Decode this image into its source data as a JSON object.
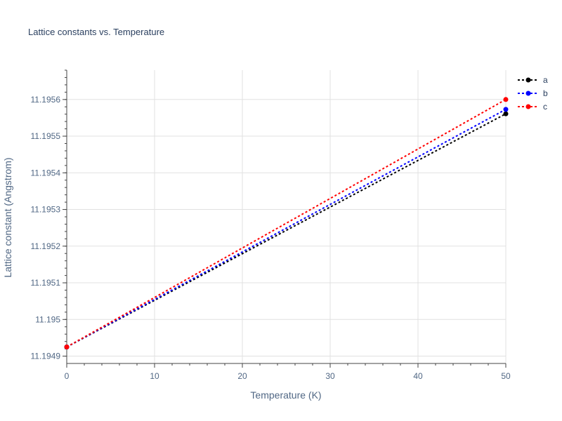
{
  "chart_data": {
    "type": "line",
    "title": "Lattice constants vs. Temperature",
    "xlabel": "Temperature (K)",
    "ylabel": "Lattice constant (Angstrom)",
    "xlim": [
      0,
      50
    ],
    "ylim": [
      11.19488,
      11.19568
    ],
    "x_ticks": [
      0,
      10,
      20,
      30,
      40,
      50
    ],
    "x_tick_labels": [
      "0",
      "10",
      "20",
      "30",
      "40",
      "50"
    ],
    "y_ticks": [
      11.1949,
      11.195,
      11.1951,
      11.1952,
      11.1953,
      11.1954,
      11.1955,
      11.1956
    ],
    "y_tick_labels": [
      "11.1949",
      "11.195",
      "11.1951",
      "11.1952",
      "11.1953",
      "11.1954",
      "11.1955",
      "11.1956"
    ],
    "grid": true,
    "legend_position": "top-right",
    "series": [
      {
        "name": "a",
        "color": "#000000",
        "x": [
          0,
          50
        ],
        "y": [
          11.194925,
          11.195561
        ]
      },
      {
        "name": "b",
        "color": "#0000ff",
        "x": [
          0,
          50
        ],
        "y": [
          11.194925,
          11.195573
        ]
      },
      {
        "name": "c",
        "color": "#ff0000",
        "x": [
          0,
          50
        ],
        "y": [
          11.194925,
          11.1956
        ]
      }
    ]
  }
}
